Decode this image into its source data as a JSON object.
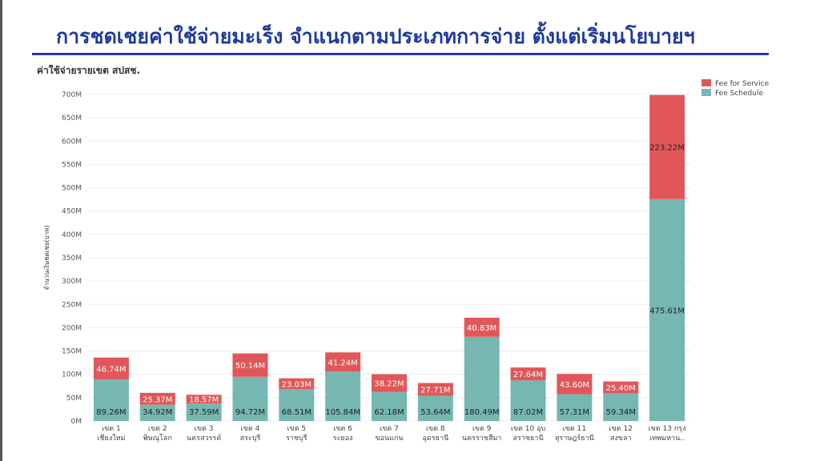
{
  "page": {
    "title": "การชดเชยค่าใช้จ่ายมะเร็ง จำแนกตามประเภทการจ่าย ตั้งแต่เริ่มนโยบายฯ"
  },
  "colors": {
    "fee_for_service": "#e15759",
    "fee_schedule": "#76b7b2",
    "title": "#1f3a9c"
  },
  "chart_data": {
    "type": "bar",
    "stacked": true,
    "title": "ค่าใช้จ่ายรายเขต สปสช.",
    "ylabel": "จำนวนเงินชดเชย(บาท)",
    "xlabel": "",
    "ylim": [
      0,
      700000000
    ],
    "yticks": [
      "0M",
      "50M",
      "100M",
      "150M",
      "200M",
      "250M",
      "300M",
      "350M",
      "400M",
      "450M",
      "500M",
      "550M",
      "600M",
      "650M",
      "700M"
    ],
    "grid": true,
    "legend_position": "top-right",
    "categories": [
      [
        "เขต 1",
        "เชียงใหม่"
      ],
      [
        "เขต 2",
        "พิษณุโลก"
      ],
      [
        "เขต 3",
        "นครสวรรค์"
      ],
      [
        "เขต 4",
        "สระบุรี"
      ],
      [
        "เขต 5",
        "ราชบุรี"
      ],
      [
        "เขต 6",
        "ระยอง"
      ],
      [
        "เขต 7",
        "ขอนแก่น"
      ],
      [
        "เขต 8",
        "อุดรธานี"
      ],
      [
        "เขต 9",
        "นครราชสีมา"
      ],
      [
        "เขต 10 อุบ",
        "ลราชธานี"
      ],
      [
        "เขต 11",
        "สุราษฎร์ธานี"
      ],
      [
        "เขต 12",
        "สงขลา"
      ],
      [
        "เขต 13 กรุง",
        "เทพมหาน.."
      ]
    ],
    "series": [
      {
        "name": "Fee Schedule",
        "values": [
          89.26,
          34.92,
          37.59,
          94.72,
          68.51,
          105.84,
          62.18,
          53.64,
          180.49,
          87.02,
          57.31,
          59.34,
          475.61
        ],
        "labels": [
          "89.26M",
          "34.92M",
          "37.59M",
          "94.72M",
          "68.51M",
          "105.84M",
          "62.18M",
          "53.64M",
          "180.49M",
          "87.02M",
          "57.31M",
          "59.34M",
          "475.61M"
        ]
      },
      {
        "name": "Fee for Service",
        "values": [
          46.74,
          25.37,
          18.57,
          50.14,
          23.03,
          41.24,
          38.22,
          27.71,
          40.83,
          27.64,
          43.6,
          25.4,
          223.22
        ],
        "labels": [
          "46.74M",
          "25.37M",
          "18.57M",
          "50.14M",
          "23.03M",
          "41.24M",
          "38.22M",
          "27.71M",
          "40.83M",
          "27.64M",
          "43.60M",
          "25.40M",
          "223.22M"
        ]
      }
    ],
    "legend": [
      "Fee for Service",
      "Fee Schedule"
    ]
  }
}
